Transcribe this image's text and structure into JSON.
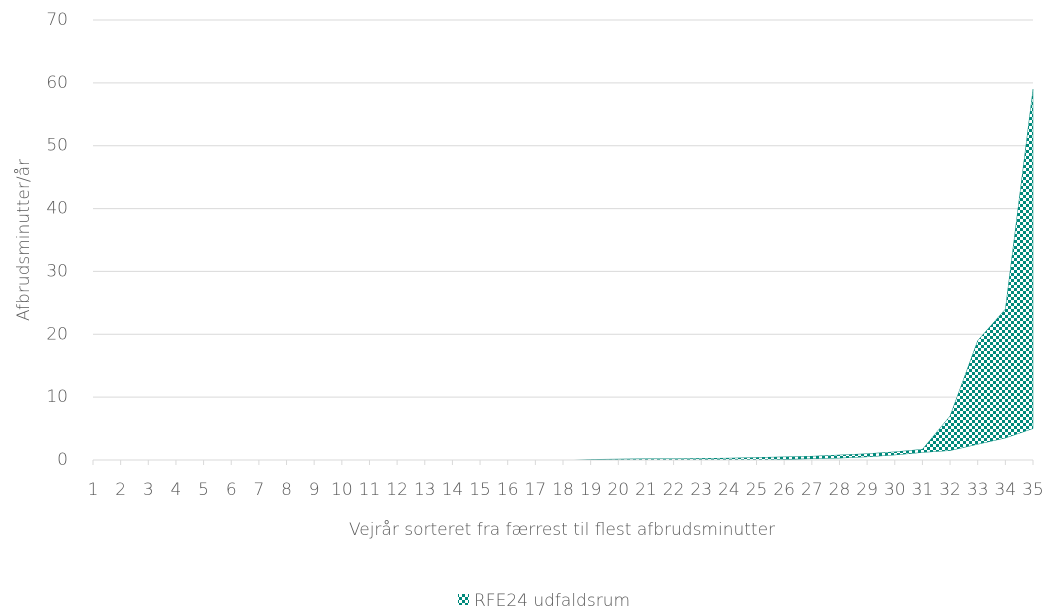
{
  "chart_data": {
    "type": "range_area",
    "x_label": "Vejrår sorteret fra færrest til flest afbrudsminutter",
    "y_label": "Afbrudsminutter/år",
    "categories": [
      "1",
      "2",
      "3",
      "4",
      "5",
      "6",
      "7",
      "8",
      "9",
      "10",
      "11",
      "12",
      "13",
      "14",
      "15",
      "16",
      "17",
      "18",
      "19",
      "20",
      "21",
      "22",
      "23",
      "24",
      "25",
      "26",
      "27",
      "28",
      "29",
      "30",
      "31",
      "32",
      "33",
      "34",
      "35"
    ],
    "series": [
      {
        "name": "RFE24 udfaldsrum",
        "color": "#00897b",
        "high": [
          0,
          0,
          0,
          0,
          0,
          0,
          0,
          0,
          0,
          0,
          0,
          0,
          0,
          0,
          0,
          0,
          0,
          0,
          0.1,
          0.15,
          0.2,
          0.2,
          0.25,
          0.3,
          0.4,
          0.5,
          0.6,
          0.8,
          1.0,
          1.3,
          1.7,
          7,
          19,
          24,
          59
        ],
        "low": [
          0,
          0,
          0,
          0,
          0,
          0,
          0,
          0,
          0,
          0,
          0,
          0,
          0,
          0,
          0,
          0,
          0,
          0,
          0,
          0,
          0,
          0,
          0,
          0,
          0,
          0.1,
          0.2,
          0.3,
          0.5,
          0.8,
          1.2,
          1.5,
          2.5,
          3.5,
          5
        ]
      }
    ],
    "ylim": [
      0,
      70
    ],
    "yticks": [
      0,
      10,
      20,
      30,
      40,
      50,
      60,
      70
    ],
    "grid": true,
    "legend": "bottom"
  }
}
